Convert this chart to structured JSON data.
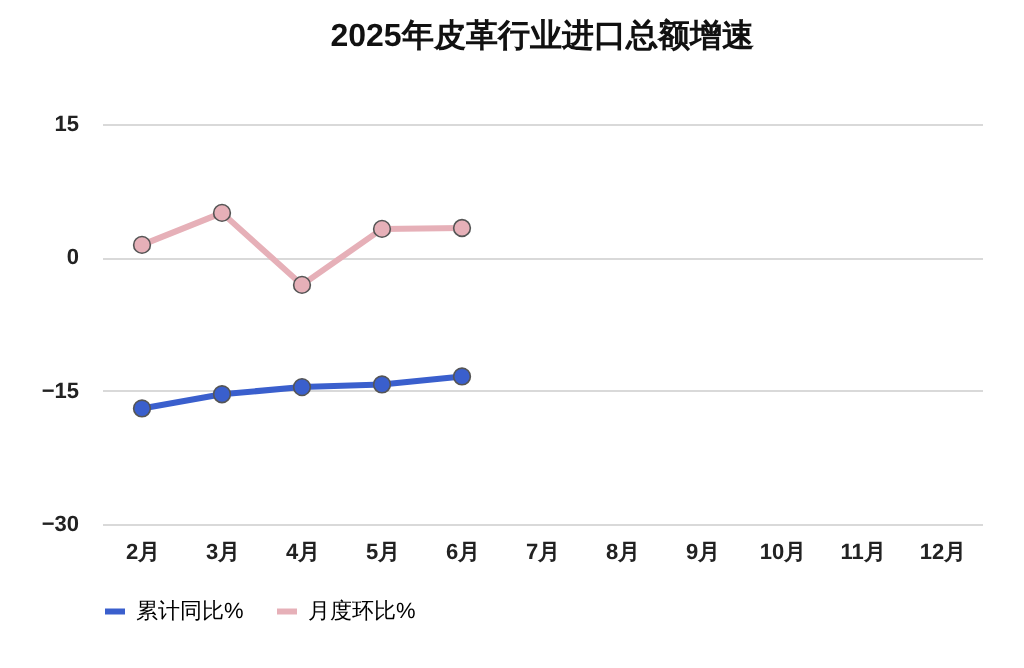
{
  "chart_data": {
    "type": "line",
    "title": "2025年皮革行业进口总额增速",
    "categories": [
      "2月",
      "3月",
      "4月",
      "5月",
      "6月",
      "7月",
      "8月",
      "9月",
      "10月",
      "11月",
      "12月"
    ],
    "series": [
      {
        "name": "累计同比%",
        "color": "#3a5fcd",
        "values": [
          -17.0,
          -15.4,
          -14.6,
          -14.3,
          -13.4,
          null,
          null,
          null,
          null,
          null,
          null
        ]
      },
      {
        "name": "月度环比%",
        "color": "#e6b0b8",
        "values": [
          1.4,
          5.0,
          -3.1,
          3.2,
          3.3,
          null,
          null,
          null,
          null,
          null,
          null
        ]
      }
    ],
    "ylim": [
      -30,
      15
    ],
    "yticks": [
      -30,
      -15,
      0,
      15
    ],
    "grid": "y",
    "legend": "bottom",
    "marker": "circle",
    "line_style": "solid"
  }
}
